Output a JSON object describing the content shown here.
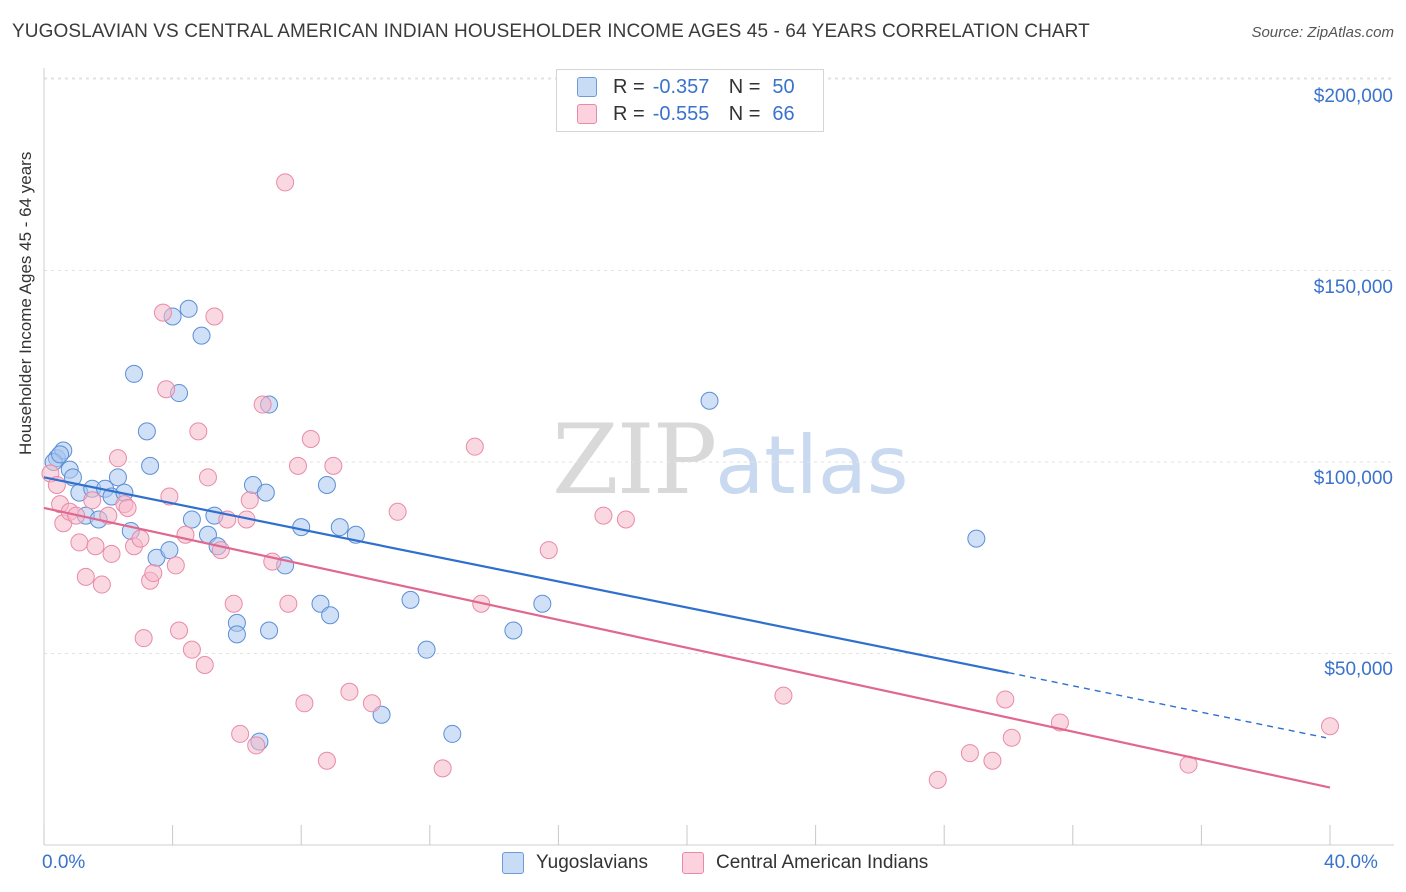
{
  "title": "YUGOSLAVIAN VS CENTRAL AMERICAN INDIAN HOUSEHOLDER INCOME AGES 45 - 64 YEARS CORRELATION CHART",
  "source": "Source: ZipAtlas.com",
  "watermark": {
    "zip": "ZIP",
    "atlas": "atlas"
  },
  "legend_top": {
    "rows": [
      {
        "r_label": "R =",
        "r_value": "-0.357",
        "n_label": "N =",
        "n_value": "50",
        "color": "#a9c6ef"
      },
      {
        "r_label": "R =",
        "r_value": "-0.555",
        "n_label": "N =",
        "n_value": "66",
        "color": "#f5b8cb"
      }
    ]
  },
  "legend_bottom": [
    {
      "label": "Yugoslavians",
      "color": "#a9c6ef"
    },
    {
      "label": "Central American Indians",
      "color": "#f5b8cb"
    }
  ],
  "chart_data": {
    "type": "scatter",
    "title": "YUGOSLAVIAN VS CENTRAL AMERICAN INDIAN HOUSEHOLDER INCOME AGES 45 - 64 YEARS CORRELATION CHART",
    "xlabel": "",
    "ylabel": "Householder Income Ages 45 - 64 years",
    "xlim": [
      0,
      40
    ],
    "ylim": [
      0,
      210000
    ],
    "x_tick_labels": [
      "0.0%",
      "40.0%"
    ],
    "y_ticks": [
      50000,
      100000,
      150000,
      200000
    ],
    "y_tick_labels": [
      "$50,000",
      "$100,000",
      "$150,000",
      "$200,000"
    ],
    "grid": true,
    "legend_placement": "top-center",
    "series": [
      {
        "name": "Yugoslavians",
        "color": "#5b8fd6",
        "fill": "#a9c6ef",
        "trend": {
          "x0": 0,
          "y0": 96000,
          "x1": 30,
          "y1": 45000,
          "dash_to_x": 40,
          "dash_to_y": 28000,
          "line_color": "#2f6fce"
        },
        "points": [
          [
            0.4,
            101000
          ],
          [
            0.6,
            103000
          ],
          [
            0.8,
            98000
          ],
          [
            0.9,
            96000
          ],
          [
            1.1,
            92000
          ],
          [
            1.3,
            86000
          ],
          [
            1.5,
            93000
          ],
          [
            1.7,
            85000
          ],
          [
            1.9,
            93000
          ],
          [
            2.1,
            91000
          ],
          [
            2.3,
            96000
          ],
          [
            2.5,
            92000
          ],
          [
            2.7,
            82000
          ],
          [
            2.8,
            123000
          ],
          [
            3.2,
            108000
          ],
          [
            3.5,
            75000
          ],
          [
            3.3,
            99000
          ],
          [
            3.9,
            77000
          ],
          [
            4.0,
            138000
          ],
          [
            4.2,
            118000
          ],
          [
            4.5,
            140000
          ],
          [
            4.6,
            85000
          ],
          [
            4.9,
            133000
          ],
          [
            5.1,
            81000
          ],
          [
            5.3,
            86000
          ],
          [
            5.4,
            78000
          ],
          [
            6.0,
            58000
          ],
          [
            6.0,
            55000
          ],
          [
            6.5,
            94000
          ],
          [
            6.7,
            27000
          ],
          [
            6.9,
            92000
          ],
          [
            7.0,
            115000
          ],
          [
            7.0,
            56000
          ],
          [
            7.5,
            73000
          ],
          [
            8.0,
            83000
          ],
          [
            8.6,
            63000
          ],
          [
            8.8,
            94000
          ],
          [
            8.9,
            60000
          ],
          [
            9.2,
            83000
          ],
          [
            9.7,
            81000
          ],
          [
            10.5,
            34000
          ],
          [
            11.4,
            64000
          ],
          [
            11.9,
            51000
          ],
          [
            12.7,
            29000
          ],
          [
            14.6,
            56000
          ],
          [
            15.5,
            63000
          ],
          [
            20.7,
            116000
          ],
          [
            29.0,
            80000
          ],
          [
            0.3,
            100000
          ],
          [
            0.5,
            102000
          ]
        ]
      },
      {
        "name": "Central American Indians",
        "color": "#e98aa8",
        "fill": "#f5b8cb",
        "trend": {
          "x0": 0,
          "y0": 88000,
          "x1": 40,
          "y1": 15000,
          "line_color": "#e0688f"
        },
        "points": [
          [
            0.2,
            97000
          ],
          [
            0.4,
            94000
          ],
          [
            0.5,
            89000
          ],
          [
            0.6,
            84000
          ],
          [
            0.8,
            87000
          ],
          [
            1.0,
            86000
          ],
          [
            1.1,
            79000
          ],
          [
            1.3,
            70000
          ],
          [
            1.5,
            90000
          ],
          [
            1.6,
            78000
          ],
          [
            1.8,
            68000
          ],
          [
            2.0,
            86000
          ],
          [
            2.1,
            76000
          ],
          [
            2.3,
            101000
          ],
          [
            2.5,
            89000
          ],
          [
            2.6,
            88000
          ],
          [
            2.8,
            78000
          ],
          [
            3.0,
            80000
          ],
          [
            3.1,
            54000
          ],
          [
            3.3,
            69000
          ],
          [
            3.4,
            71000
          ],
          [
            3.7,
            139000
          ],
          [
            3.8,
            119000
          ],
          [
            3.9,
            91000
          ],
          [
            4.1,
            73000
          ],
          [
            4.2,
            56000
          ],
          [
            4.4,
            81000
          ],
          [
            4.6,
            51000
          ],
          [
            4.8,
            108000
          ],
          [
            5.0,
            47000
          ],
          [
            5.1,
            96000
          ],
          [
            5.3,
            138000
          ],
          [
            5.5,
            77000
          ],
          [
            5.7,
            85000
          ],
          [
            5.9,
            63000
          ],
          [
            6.1,
            29000
          ],
          [
            6.3,
            85000
          ],
          [
            6.4,
            90000
          ],
          [
            6.6,
            26000
          ],
          [
            6.8,
            115000
          ],
          [
            7.1,
            74000
          ],
          [
            7.5,
            173000
          ],
          [
            7.6,
            63000
          ],
          [
            7.9,
            99000
          ],
          [
            8.1,
            37000
          ],
          [
            8.3,
            106000
          ],
          [
            8.8,
            22000
          ],
          [
            9.0,
            99000
          ],
          [
            9.5,
            40000
          ],
          [
            10.2,
            37000
          ],
          [
            11.0,
            87000
          ],
          [
            12.4,
            20000
          ],
          [
            13.4,
            104000
          ],
          [
            13.6,
            63000
          ],
          [
            15.7,
            77000
          ],
          [
            17.4,
            86000
          ],
          [
            18.1,
            85000
          ],
          [
            23.0,
            39000
          ],
          [
            27.8,
            17000
          ],
          [
            28.8,
            24000
          ],
          [
            29.5,
            22000
          ],
          [
            29.9,
            38000
          ],
          [
            30.1,
            28000
          ],
          [
            31.6,
            32000
          ],
          [
            35.6,
            21000
          ],
          [
            40.0,
            31000
          ]
        ]
      }
    ]
  }
}
